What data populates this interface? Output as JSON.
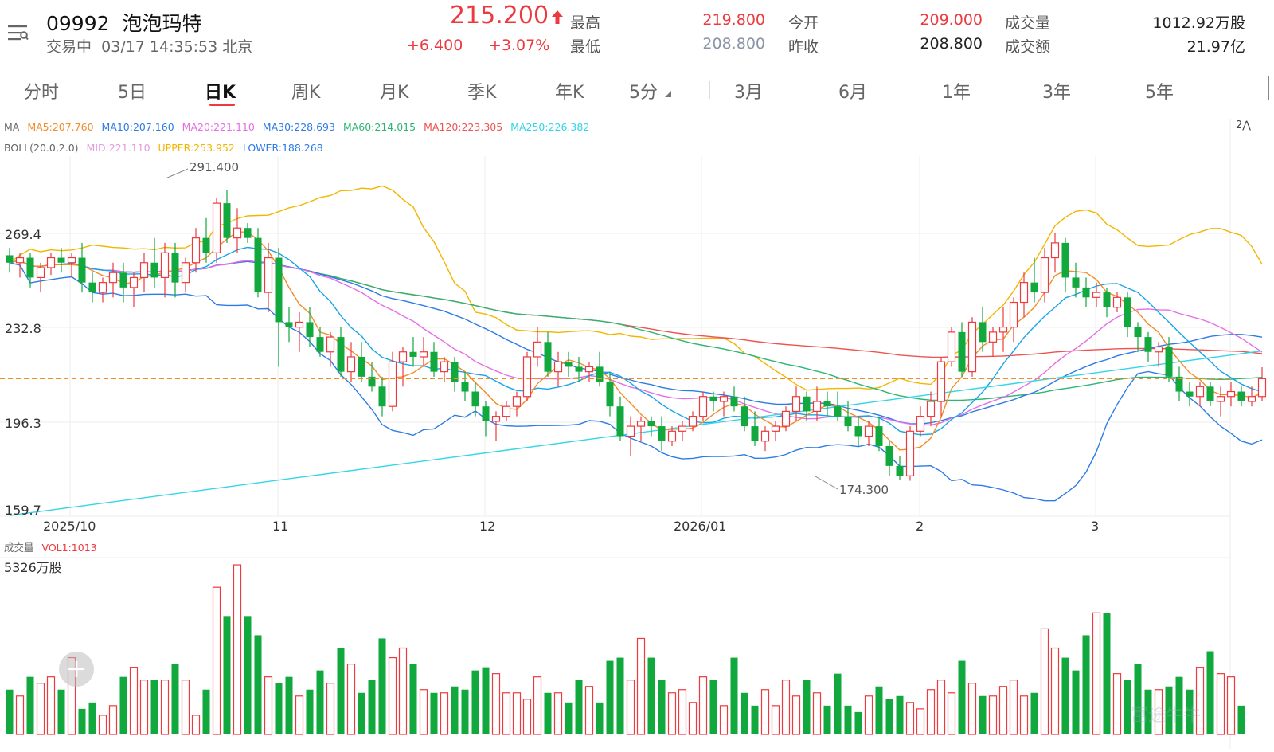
{
  "header": {
    "code": "09992",
    "name": "泡泡玛特",
    "status": "交易中",
    "datetime": "03/17 14:35:53 北京",
    "price": "215.200",
    "change": "+6.400",
    "change_pct": "+3.07%",
    "stats": [
      {
        "label": "最高",
        "value": "219.800",
        "color": "#ec3a3f"
      },
      {
        "label": "最低",
        "value": "208.800",
        "color": "#8a94a6"
      },
      {
        "label": "今开",
        "value": "209.000",
        "color": "#ec3a3f"
      },
      {
        "label": "昨收",
        "value": "208.800",
        "color": "#222222"
      },
      {
        "label": "成交量",
        "value": "1012.92万股",
        "color": "#222222"
      },
      {
        "label": "成交额",
        "value": "21.97亿",
        "color": "#222222"
      }
    ]
  },
  "tabs": [
    "分时",
    "5日",
    "日K",
    "周K",
    "月K",
    "季K",
    "年K",
    "5分",
    "3月",
    "6月",
    "1年",
    "3年",
    "5年"
  ],
  "active_tab": "日K",
  "indicators": {
    "ma": [
      {
        "text": "MA",
        "color": "#666666"
      },
      {
        "text": "MA5:207.760",
        "color": "#f28c28"
      },
      {
        "text": "MA10:207.160",
        "color": "#2d7be5"
      },
      {
        "text": "MA20:221.110",
        "color": "#e56ee5"
      },
      {
        "text": "MA30:228.693",
        "color": "#2d7be5"
      },
      {
        "text": "MA60:214.015",
        "color": "#2bb673"
      },
      {
        "text": "MA120:223.305",
        "color": "#ef5350"
      },
      {
        "text": "MA250:226.382",
        "color": "#33d6e6"
      }
    ],
    "boll": [
      {
        "text": "BOLL(20.0,2.0)",
        "color": "#666666"
      },
      {
        "text": "MID:221.110",
        "color": "#e59ae0"
      },
      {
        "text": "UPPER:253.952",
        "color": "#f2b600"
      },
      {
        "text": "LOWER:188.268",
        "color": "#2d7be5"
      }
    ],
    "collapse_label": "2⋀"
  },
  "price_axis": [
    "269.4",
    "232.8",
    "196.3",
    "159.7"
  ],
  "date_axis": [
    "2025/10",
    "11",
    "12",
    "2026/01",
    "2",
    "3"
  ],
  "annotations": {
    "high": "291.400",
    "low": "174.300"
  },
  "volume": {
    "title": "成交量",
    "vol_label": "VOL1:1013",
    "max_label": "5326万股"
  },
  "colors": {
    "up": "#ec3a3f",
    "down": "#11a83d",
    "accent": "#ec3a3f"
  },
  "icons": {
    "menu": "menu-icon",
    "add": "add-icon",
    "arrow": "up-arrow-icon"
  },
  "watermark": "富途牛牛",
  "chart_data": {
    "type": "candlestick",
    "y_range": [
      159.7,
      305
    ],
    "candles": [
      [
        265,
        268,
        258,
        262
      ],
      [
        262,
        266,
        256,
        264
      ],
      [
        264,
        266,
        252,
        256
      ],
      [
        256,
        262,
        250,
        260
      ],
      [
        260,
        266,
        257,
        264
      ],
      [
        264,
        268,
        258,
        262
      ],
      [
        262,
        266,
        256,
        264
      ],
      [
        264,
        270,
        250,
        254
      ],
      [
        254,
        258,
        246,
        250
      ],
      [
        250,
        256,
        246,
        254
      ],
      [
        254,
        262,
        248,
        258
      ],
      [
        258,
        262,
        246,
        252
      ],
      [
        252,
        258,
        244,
        256
      ],
      [
        256,
        266,
        250,
        262
      ],
      [
        262,
        272,
        252,
        256
      ],
      [
        256,
        270,
        248,
        266
      ],
      [
        266,
        270,
        248,
        254
      ],
      [
        254,
        264,
        250,
        262
      ],
      [
        262,
        276,
        258,
        272
      ],
      [
        272,
        280,
        262,
        266
      ],
      [
        266,
        288,
        262,
        286
      ],
      [
        286,
        291.4,
        270,
        272
      ],
      [
        272,
        284,
        266,
        276
      ],
      [
        276,
        278,
        270,
        272
      ],
      [
        272,
        276,
        248,
        250
      ],
      [
        250,
        270,
        242,
        264
      ],
      [
        264,
        268,
        220,
        238
      ],
      [
        238,
        244,
        230,
        236
      ],
      [
        236,
        242,
        226,
        238
      ],
      [
        238,
        244,
        228,
        232
      ],
      [
        232,
        236,
        224,
        226
      ],
      [
        226,
        234,
        220,
        232
      ],
      [
        232,
        236,
        216,
        218
      ],
      [
        218,
        230,
        214,
        224
      ],
      [
        224,
        230,
        214,
        216
      ],
      [
        216,
        222,
        210,
        212
      ],
      [
        212,
        216,
        200,
        204
      ],
      [
        204,
        226,
        202,
        222
      ],
      [
        222,
        228,
        212,
        226
      ],
      [
        226,
        232,
        220,
        224
      ],
      [
        224,
        232,
        220,
        226
      ],
      [
        226,
        230,
        216,
        218
      ],
      [
        218,
        224,
        214,
        222
      ],
      [
        222,
        224,
        210,
        214
      ],
      [
        214,
        218,
        206,
        210
      ],
      [
        210,
        214,
        200,
        204
      ],
      [
        204,
        206,
        192,
        198
      ],
      [
        198,
        202,
        190,
        200
      ],
      [
        200,
        206,
        198,
        204
      ],
      [
        204,
        210,
        200,
        208
      ],
      [
        208,
        226,
        206,
        224
      ],
      [
        224,
        236,
        220,
        230
      ],
      [
        230,
        234,
        216,
        218
      ],
      [
        218,
        226,
        212,
        222
      ],
      [
        222,
        226,
        216,
        220
      ],
      [
        220,
        224,
        214,
        218
      ],
      [
        218,
        222,
        214,
        220
      ],
      [
        220,
        226,
        212,
        214
      ],
      [
        214,
        218,
        200,
        204
      ],
      [
        204,
        208,
        190,
        192
      ],
      [
        192,
        200,
        184,
        196
      ],
      [
        196,
        200,
        190,
        198
      ],
      [
        198,
        200,
        192,
        196
      ],
      [
        196,
        200,
        186,
        190
      ],
      [
        190,
        196,
        188,
        194
      ],
      [
        194,
        198,
        190,
        196
      ],
      [
        196,
        202,
        194,
        200
      ],
      [
        200,
        210,
        198,
        208
      ],
      [
        208,
        210,
        202,
        206
      ],
      [
        206,
        210,
        200,
        208
      ],
      [
        208,
        212,
        202,
        204
      ],
      [
        204,
        208,
        194,
        196
      ],
      [
        196,
        202,
        188,
        190
      ],
      [
        190,
        196,
        186,
        194
      ],
      [
        194,
        198,
        190,
        196
      ],
      [
        196,
        204,
        194,
        202
      ],
      [
        202,
        212,
        198,
        208
      ],
      [
        208,
        210,
        198,
        202
      ],
      [
        202,
        212,
        198,
        206
      ],
      [
        206,
        210,
        200,
        204
      ],
      [
        204,
        210,
        198,
        200
      ],
      [
        200,
        206,
        194,
        196
      ],
      [
        196,
        200,
        188,
        192
      ],
      [
        192,
        198,
        188,
        196
      ],
      [
        196,
        200,
        186,
        188
      ],
      [
        188,
        190,
        176,
        180
      ],
      [
        180,
        184,
        174.3,
        176
      ],
      [
        176,
        196,
        174,
        194
      ],
      [
        194,
        204,
        192,
        200
      ],
      [
        200,
        210,
        196,
        206
      ],
      [
        206,
        224,
        200,
        222
      ],
      [
        222,
        236,
        220,
        234
      ],
      [
        234,
        238,
        216,
        218
      ],
      [
        218,
        240,
        216,
        238
      ],
      [
        238,
        244,
        226,
        230
      ],
      [
        230,
        236,
        224,
        234
      ],
      [
        234,
        244,
        226,
        236
      ],
      [
        236,
        248,
        230,
        246
      ],
      [
        246,
        258,
        240,
        254
      ],
      [
        254,
        264,
        246,
        250
      ],
      [
        250,
        268,
        246,
        264
      ],
      [
        264,
        274,
        258,
        270
      ],
      [
        270,
        272,
        250,
        256
      ],
      [
        256,
        262,
        248,
        252
      ],
      [
        252,
        256,
        244,
        248
      ],
      [
        248,
        254,
        244,
        250
      ],
      [
        250,
        252,
        240,
        244
      ],
      [
        244,
        250,
        242,
        248
      ],
      [
        248,
        250,
        232,
        236
      ],
      [
        236,
        238,
        226,
        232
      ],
      [
        232,
        234,
        222,
        226
      ],
      [
        226,
        230,
        220,
        228
      ],
      [
        228,
        232,
        214,
        216
      ],
      [
        216,
        220,
        206,
        210
      ],
      [
        210,
        214,
        204,
        208
      ],
      [
        208,
        214,
        204,
        212
      ],
      [
        212,
        214,
        204,
        206
      ],
      [
        206,
        212,
        200,
        208
      ],
      [
        208,
        214,
        204,
        210
      ],
      [
        210,
        212,
        204,
        206
      ],
      [
        206,
        212,
        204,
        208
      ],
      [
        208,
        219.8,
        206,
        215.2
      ]
    ],
    "volumes": [
      14,
      12,
      18,
      16,
      18,
      14,
      24,
      8,
      10,
      6,
      9,
      18,
      21,
      17,
      17,
      17,
      22,
      17,
      6,
      14,
      46,
      37,
      53,
      37,
      31,
      18,
      16,
      18,
      12,
      14,
      20,
      16,
      27,
      22,
      13,
      17,
      30,
      24,
      27,
      22,
      14,
      13,
      13,
      15,
      14,
      20,
      21,
      19,
      13,
      13,
      11,
      18,
      13,
      13,
      10,
      17,
      15,
      10,
      23,
      24,
      17,
      30,
      24,
      17,
      13,
      14,
      10,
      18,
      17,
      9,
      24,
      13,
      9,
      14,
      9,
      17,
      12,
      17,
      13,
      9,
      19,
      9,
      7,
      12,
      15,
      11,
      12,
      10,
      8,
      14,
      17,
      13,
      23,
      16,
      12,
      12,
      15,
      17,
      12,
      13,
      33,
      27,
      24,
      20,
      31,
      38,
      38,
      19,
      17,
      22,
      14,
      14,
      15,
      18,
      14,
      21,
      26,
      19,
      18,
      9
    ]
  }
}
